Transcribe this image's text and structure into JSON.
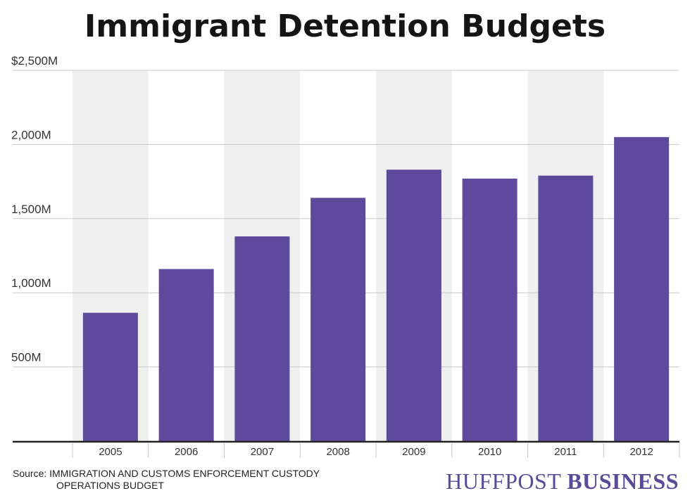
{
  "chart_data": {
    "type": "bar",
    "title": "Immigrant Detention Budgets",
    "categories": [
      "2005",
      "2006",
      "2007",
      "2008",
      "2009",
      "2010",
      "2011",
      "2012"
    ],
    "values": [
      865,
      1160,
      1380,
      1640,
      1830,
      1770,
      1790,
      2050
    ],
    "ylim": [
      0,
      2500
    ],
    "yticks": [
      {
        "value": 2500,
        "label": "$2,500M"
      },
      {
        "value": 2000,
        "label": "2,000M"
      },
      {
        "value": 1500,
        "label": "1,500M"
      },
      {
        "value": 1000,
        "label": "1,000M"
      },
      {
        "value": 500,
        "label": "500M"
      }
    ],
    "grid": true,
    "alternating_column_shading": true,
    "bar_color": "#5e4a9c",
    "band_color": "#efeff0"
  },
  "footer": {
    "source_line1": "Source: IMMIGRATION AND CUSTOMS ENFORCEMENT CUSTODY",
    "source_line2": "OPERATIONS BUDGET",
    "brand_part1": "HUFFPOST",
    "brand_part2": "BUSINESS"
  }
}
